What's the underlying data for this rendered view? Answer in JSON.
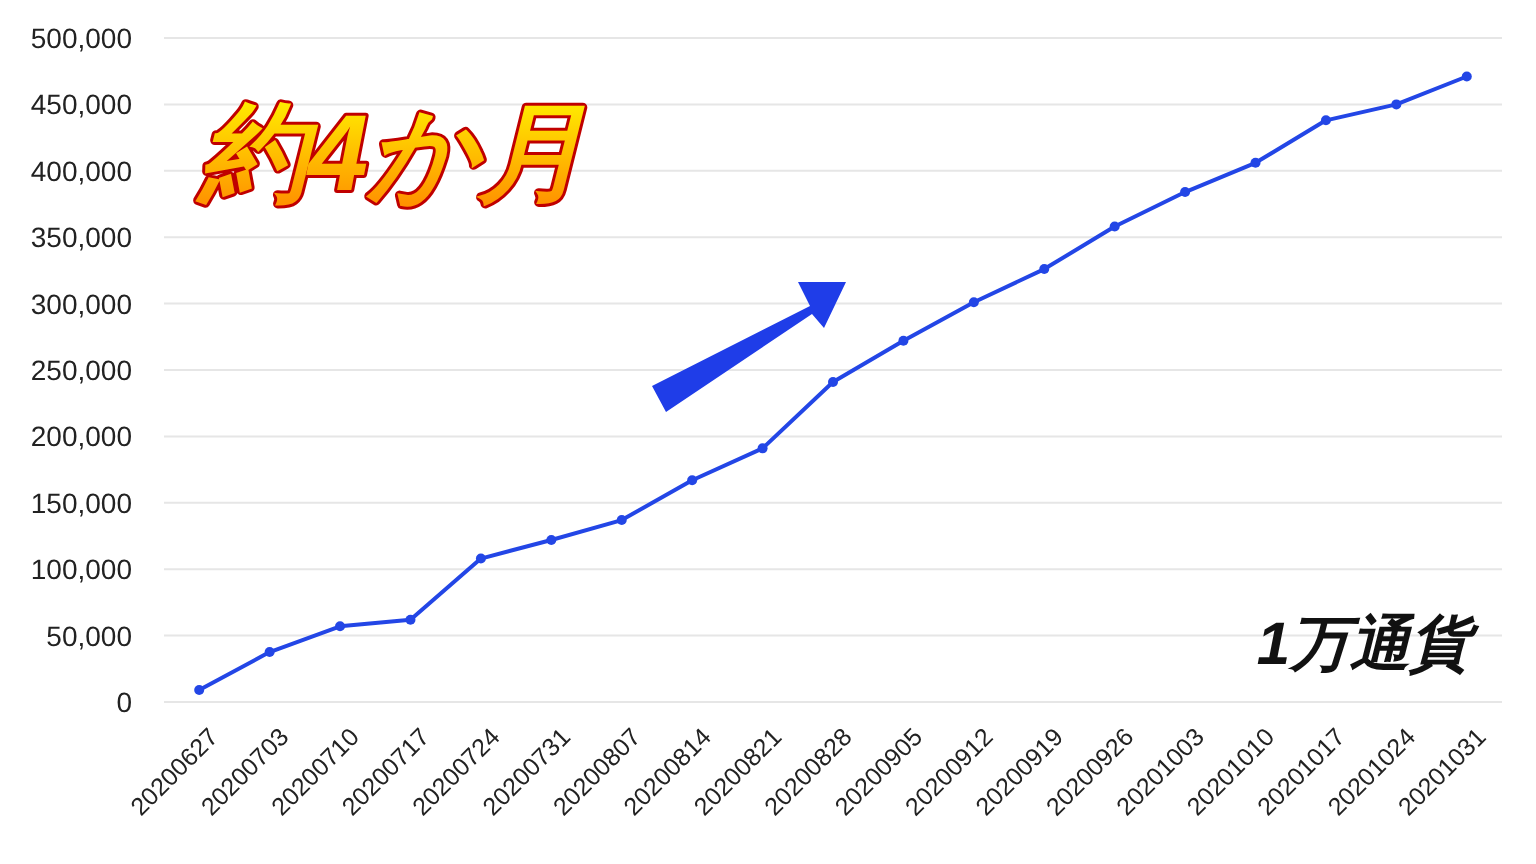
{
  "chart_data": {
    "type": "line",
    "categories": [
      "20200627",
      "20200703",
      "20200710",
      "20200717",
      "20200724",
      "20200731",
      "20200807",
      "20200814",
      "20200821",
      "20200828",
      "20200905",
      "20200912",
      "20200919",
      "20200926",
      "20201003",
      "20201010",
      "20201017",
      "20201024",
      "20201031"
    ],
    "series": [
      {
        "color": "#2346e6",
        "values": [
          9000,
          37600,
          57000,
          62000,
          108000,
          122000,
          137000,
          167000,
          191000,
          241000,
          272000,
          301000,
          326000,
          358000,
          384000,
          406000,
          438000,
          450000,
          471000
        ]
      }
    ],
    "ylim": [
      0,
      500000
    ],
    "yticks": [
      0,
      {
        "value": 50000,
        "label": "50,000"
      },
      {
        "value": 100000,
        "label": "100,000"
      },
      {
        "value": 150000,
        "label": "150,000"
      },
      {
        "value": 200000,
        "label": "200,000"
      },
      {
        "value": 250000,
        "label": "250,000"
      },
      {
        "value": 300000,
        "label": "300,000"
      },
      {
        "value": 350000,
        "label": "350,000"
      },
      {
        "value": 400000,
        "label": "400,000"
      },
      {
        "value": 450000,
        "label": "450,000"
      },
      {
        "value": 500000,
        "label": "500,000"
      }
    ],
    "grid": "y",
    "marker": "circle",
    "line_style": "solid",
    "annotations": [
      "約4か月",
      "1万通貨"
    ]
  }
}
